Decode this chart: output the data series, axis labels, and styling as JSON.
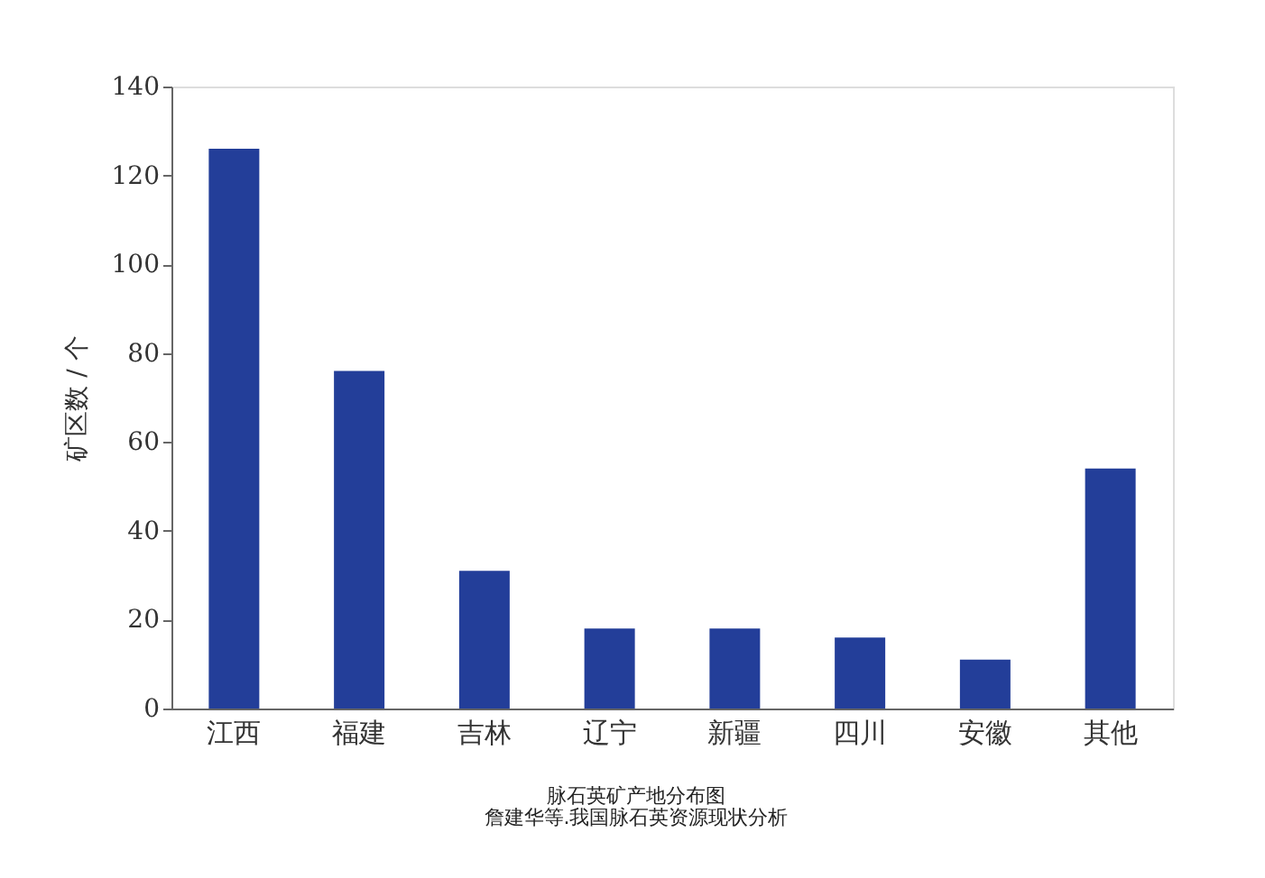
{
  "chart_data": {
    "type": "bar",
    "ylabel": "矿区数 / 个",
    "categories": [
      "江西",
      "福建",
      "吉林",
      "辽宁",
      "新疆",
      "四川",
      "安徽",
      "其他"
    ],
    "values": [
      126,
      76,
      31,
      18,
      18,
      16,
      11,
      54
    ],
    "color": "#233e99",
    "ylim": [
      0,
      140
    ],
    "yticks": [
      0,
      20,
      40,
      60,
      80,
      100,
      120,
      140
    ],
    "grid": false,
    "annotations": [
      "脉石英矿产地分布图",
      "詹建华等.我国脉石英资源现状分析"
    ]
  }
}
